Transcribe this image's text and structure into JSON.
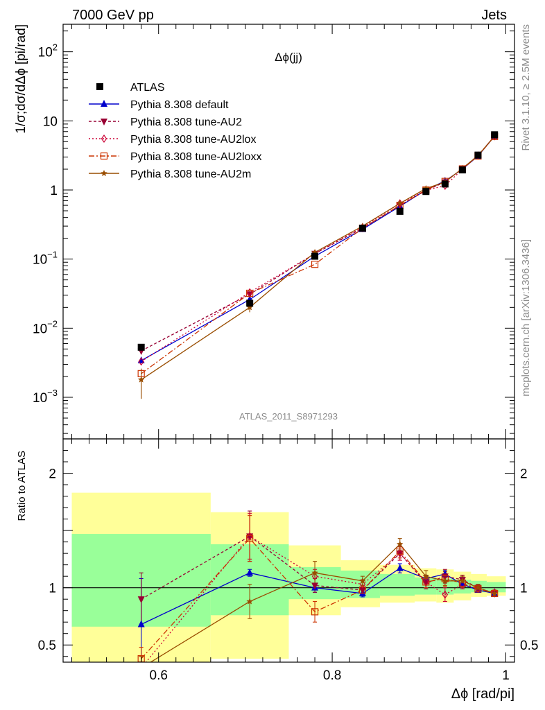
{
  "header": {
    "left": "7000 GeV pp",
    "right": "Jets"
  },
  "side": {
    "top": "Rivet 3.1.10, ≥ 2.5M events",
    "bottom": "mcplots.cern.ch [arXiv:1306.3436]"
  },
  "chart_data": [
    {
      "type": "line",
      "title": "Δϕ(jj)",
      "ylabel": "1/σ;dσ/dΔϕ [pi/rad]",
      "xlabel": "",
      "yscale": "log",
      "xlim": [
        0.49,
        1.01
      ],
      "ylim": [
        0.00025,
        250
      ],
      "yticks": [
        {
          "v": 0.001,
          "base": "10",
          "exp": "−3"
        },
        {
          "v": 0.01,
          "base": "10",
          "exp": "−2"
        },
        {
          "v": 0.1,
          "base": "10",
          "exp": "−1"
        },
        {
          "v": 1,
          "base": "1",
          "exp": ""
        },
        {
          "v": 10,
          "base": "10",
          "exp": ""
        },
        {
          "v": 100,
          "base": "10",
          "exp": "2"
        }
      ],
      "watermark": "ATLAS_2011_S8971293",
      "legend_position": "top-left",
      "x": [
        0.58,
        0.705,
        0.78,
        0.835,
        0.878,
        0.908,
        0.93,
        0.95,
        0.968,
        0.987
      ],
      "data": {
        "name": "ATLAS",
        "values": [
          0.0053,
          0.023,
          0.11,
          0.28,
          0.49,
          0.95,
          1.22,
          1.95,
          3.2,
          6.3
        ],
        "err": [
          0.0005,
          0.002,
          0.008,
          0.015,
          0.03,
          0.05,
          0.07,
          0.1,
          0.15,
          0.3
        ]
      },
      "series": [
        {
          "name": "Pythia 8.308 default",
          "color": "#0000cc",
          "dash": "",
          "marker": "triangle-up",
          "values": [
            0.0034,
            0.026,
            0.11,
            0.27,
            0.58,
            1.0,
            1.35,
            2.0,
            3.1,
            6.0
          ]
        },
        {
          "name": "Pythia 8.308 tune-AU2",
          "color": "#990033",
          "dash": "4,3",
          "marker": "triangle-down",
          "values": [
            0.0047,
            0.031,
            0.12,
            0.28,
            0.6,
            0.98,
            1.3,
            2.05,
            3.15,
            6.0
          ]
        },
        {
          "name": "Pythia 8.308 tune-AU2lox",
          "color": "#cc0033",
          "dash": "2,3",
          "marker": "diamond-open",
          "values": [
            0.0033,
            0.033,
            0.12,
            0.29,
            0.64,
            0.99,
            1.15,
            2.0,
            3.15,
            6.0
          ]
        },
        {
          "name": "Pythia 8.308 tune-AU2loxx",
          "color": "#cc3300",
          "dash": "8,3,2,3",
          "marker": "square-open",
          "values": [
            0.0022,
            0.032,
            0.084,
            0.28,
            0.6,
            1.0,
            1.33,
            2.02,
            3.1,
            5.95
          ]
        },
        {
          "name": "Pythia 8.308 tune-AU2m",
          "color": "#994d00",
          "dash": "",
          "marker": "star",
          "values": [
            0.0018,
            0.02,
            0.125,
            0.3,
            0.64,
            1.05,
            1.3,
            2.05,
            3.15,
            6.0
          ]
        }
      ]
    },
    {
      "type": "line",
      "title": "",
      "ylabel": "Ratio to ATLAS",
      "xlabel": "Δϕ [rad/pi]",
      "xlim": [
        0.49,
        1.01
      ],
      "ylim": [
        0.35,
        2.3
      ],
      "yticks": [
        {
          "v": 0.5,
          "label": "0.5"
        },
        {
          "v": 1,
          "label": "1"
        },
        {
          "v": 2,
          "label": "2"
        }
      ],
      "xticks": [
        {
          "v": 0.6,
          "label": "0.6"
        },
        {
          "v": 0.8,
          "label": "0.8"
        },
        {
          "v": 1.0,
          "label": "1"
        }
      ],
      "bands": [
        {
          "x0": 0.5,
          "x1": 0.66,
          "y1_lo": 0.66,
          "y1_hi": 1.47,
          "y2_lo": 0.35,
          "y2_hi": 1.83
        },
        {
          "x0": 0.66,
          "x1": 0.75,
          "y1_lo": 0.76,
          "y1_hi": 1.38,
          "y2_lo": 0.38,
          "y2_hi": 1.66
        },
        {
          "x0": 0.75,
          "x1": 0.81,
          "y1_lo": 0.9,
          "y1_hi": 1.18,
          "y2_lo": 0.76,
          "y2_hi": 1.37
        },
        {
          "x0": 0.81,
          "x1": 0.855,
          "y1_lo": 0.91,
          "y1_hi": 1.15,
          "y2_lo": 0.83,
          "y2_hi": 1.24
        },
        {
          "x0": 0.855,
          "x1": 0.895,
          "y1_lo": 0.93,
          "y1_hi": 1.12,
          "y2_lo": 0.87,
          "y2_hi": 1.2
        },
        {
          "x0": 0.895,
          "x1": 0.92,
          "y1_lo": 0.94,
          "y1_hi": 1.09,
          "y2_lo": 0.88,
          "y2_hi": 1.17
        },
        {
          "x0": 0.92,
          "x1": 0.94,
          "y1_lo": 0.94,
          "y1_hi": 1.08,
          "y2_lo": 0.87,
          "y2_hi": 1.16
        },
        {
          "x0": 0.94,
          "x1": 0.96,
          "y1_lo": 0.95,
          "y1_hi": 1.07,
          "y2_lo": 0.89,
          "y2_hi": 1.14
        },
        {
          "x0": 0.96,
          "x1": 0.978,
          "y1_lo": 0.96,
          "y1_hi": 1.06,
          "y2_lo": 0.92,
          "y2_hi": 1.12
        },
        {
          "x0": 0.978,
          "x1": 1.0,
          "y1_lo": 0.96,
          "y1_hi": 1.05,
          "y2_lo": 0.93,
          "y2_hi": 1.1
        }
      ],
      "series": [
        {
          "name": "Pythia 8.308 default",
          "values": [
            0.68,
            1.13,
            1.0,
            0.95,
            1.17,
            1.08,
            1.12,
            1.03,
            0.98,
            0.95
          ],
          "err": [
            0.4,
            0.03,
            0.04,
            0.03,
            0.04,
            0.03,
            0.03,
            0.03,
            0.02,
            0.02
          ]
        },
        {
          "name": "Pythia 8.308 tune-AU2",
          "values": [
            0.9,
            1.45,
            1.02,
            0.98,
            1.3,
            1.04,
            1.1,
            1.07,
            1.0,
            0.95
          ],
          "err": [
            0.23,
            0.22,
            0.06,
            0.04,
            0.06,
            0.05,
            0.06,
            0.04,
            0.03,
            0.02
          ]
        },
        {
          "name": "Pythia 8.308 tune-AU2lox",
          "values": [
            0.3,
            1.45,
            1.1,
            1.03,
            1.3,
            1.05,
            0.94,
            1.03,
            0.99,
            0.96
          ],
          "err": [
            0.1,
            0.2,
            0.06,
            0.04,
            0.06,
            0.05,
            0.06,
            0.04,
            0.03,
            0.02
          ]
        },
        {
          "name": "Pythia 8.308 tune-AU2loxx",
          "values": [
            0.38,
            1.43,
            0.79,
            0.98,
            1.32,
            1.05,
            1.08,
            1.04,
            0.99,
            0.95
          ],
          "err": [
            0.1,
            0.2,
            0.09,
            0.04,
            0.06,
            0.05,
            0.06,
            0.04,
            0.03,
            0.02
          ]
        },
        {
          "name": "Pythia 8.308 tune-AU2m",
          "values": [
            0.3,
            0.88,
            1.13,
            1.06,
            1.38,
            1.1,
            1.06,
            1.06,
            1.0,
            0.95
          ],
          "err": [
            0.1,
            0.15,
            0.1,
            0.04,
            0.05,
            0.05,
            0.05,
            0.04,
            0.03,
            0.02
          ]
        }
      ]
    }
  ]
}
